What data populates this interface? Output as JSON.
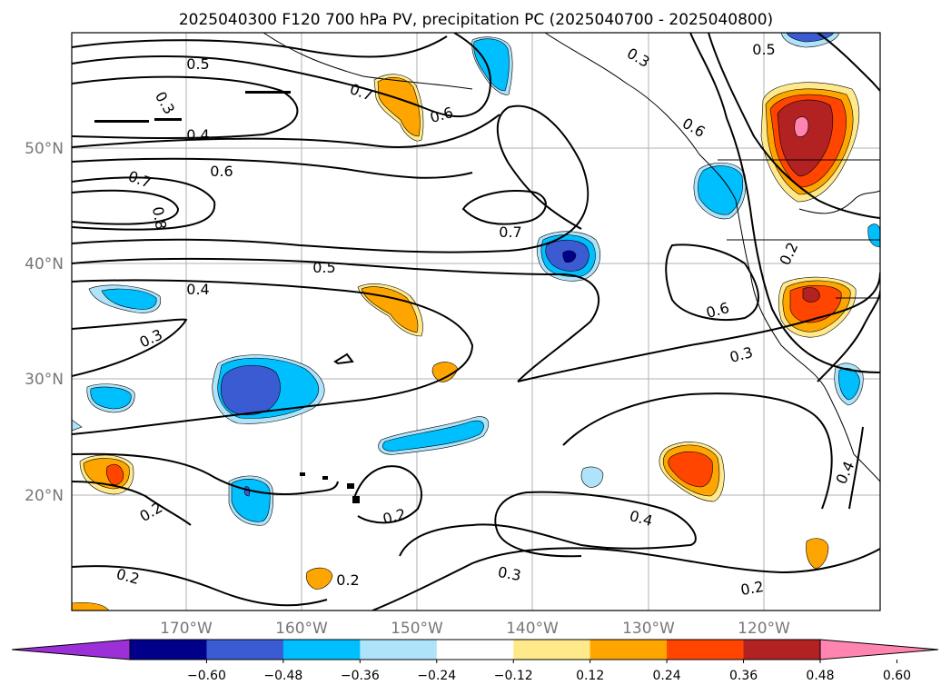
{
  "title": "2025040300 F120 700 hPa PV, precipitation PC (2025040700 - 2025040800)",
  "lat_labels": [
    "50°N",
    "40°N",
    "30°N",
    "20°N"
  ],
  "lon_labels": [
    "170°W",
    "160°W",
    "150°W",
    "140°W",
    "130°W",
    "120°W"
  ],
  "colorbar": {
    "ticks": [
      "−0.60",
      "−0.48",
      "−0.36",
      "−0.24",
      "−0.12",
      "0.12",
      "0.24",
      "0.36",
      "0.48",
      "0.60"
    ],
    "colors": [
      "#9b30d9",
      "#00008b",
      "#3a5bd1",
      "#00bfff",
      "#aee3f9",
      "#ffffff",
      "#ffe98a",
      "#ffa500",
      "#ff4500",
      "#b22222",
      "#ff85b0"
    ]
  },
  "contour_labels": [
    {
      "text": "0.5"
    },
    {
      "text": "0.3"
    },
    {
      "text": "0.4"
    },
    {
      "text": "0.7"
    },
    {
      "text": "0.6"
    },
    {
      "text": "0.8"
    },
    {
      "text": "0.7"
    },
    {
      "text": "0.5"
    },
    {
      "text": "0.4"
    },
    {
      "text": "0.3"
    },
    {
      "text": "0.2"
    },
    {
      "text": "0.2"
    },
    {
      "text": "0.2"
    },
    {
      "text": "0.2"
    },
    {
      "text": "0.3"
    },
    {
      "text": "0.4"
    },
    {
      "text": "0.2"
    },
    {
      "text": "0.6"
    },
    {
      "text": "0.3"
    },
    {
      "text": "0.2"
    },
    {
      "text": "0.4"
    },
    {
      "text": "0.3"
    },
    {
      "text": "0.5"
    },
    {
      "text": "0.7"
    },
    {
      "text": "0.6"
    },
    {
      "text": "0.6"
    }
  ]
}
